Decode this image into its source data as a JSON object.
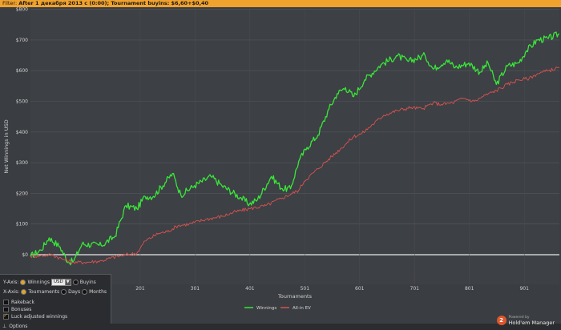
{
  "filter": {
    "label": "Filter:",
    "value": "After 1 декабря 2013 с (0:00); Tournament buyins: $6,60+$0,40"
  },
  "chart_data": {
    "type": "line",
    "ylabel": "Net Winnings in USD",
    "xlabel": "Tournaments",
    "xlim": [
      1,
      965
    ],
    "ylim": [
      0,
      800
    ],
    "yticks": [
      0,
      100,
      200,
      300,
      400,
      500,
      600,
      700,
      800
    ],
    "ytick_labels": [
      "$0",
      "$100",
      "$200",
      "$300",
      "$400",
      "$500",
      "$600",
      "$700",
      "$800"
    ],
    "xticks": [
      201,
      301,
      401,
      501,
      601,
      701,
      801,
      901
    ],
    "xtick_labels": [
      "201",
      "301",
      "401",
      "501",
      "601",
      "701",
      "801",
      "901"
    ],
    "grid": true,
    "legend_position": "bottom-center",
    "series": [
      {
        "name": "Winnings",
        "color": "#39e639",
        "points": [
          [
            1,
            -5
          ],
          [
            20,
            15
          ],
          [
            35,
            55
          ],
          [
            55,
            25
          ],
          [
            70,
            -25
          ],
          [
            80,
            -20
          ],
          [
            95,
            35
          ],
          [
            130,
            30
          ],
          [
            155,
            60
          ],
          [
            175,
            160
          ],
          [
            195,
            150
          ],
          [
            210,
            190
          ],
          [
            225,
            190
          ],
          [
            260,
            265
          ],
          [
            275,
            195
          ],
          [
            300,
            225
          ],
          [
            330,
            255
          ],
          [
            350,
            225
          ],
          [
            385,
            185
          ],
          [
            400,
            165
          ],
          [
            415,
            180
          ],
          [
            440,
            255
          ],
          [
            460,
            215
          ],
          [
            475,
            215
          ],
          [
            490,
            305
          ],
          [
            505,
            350
          ],
          [
            525,
            390
          ],
          [
            545,
            475
          ],
          [
            560,
            525
          ],
          [
            575,
            545
          ],
          [
            590,
            515
          ],
          [
            610,
            570
          ],
          [
            640,
            620
          ],
          [
            670,
            648
          ],
          [
            690,
            630
          ],
          [
            720,
            650
          ],
          [
            735,
            605
          ],
          [
            760,
            635
          ],
          [
            775,
            610
          ],
          [
            800,
            625
          ],
          [
            820,
            595
          ],
          [
            835,
            625
          ],
          [
            850,
            555
          ],
          [
            870,
            615
          ],
          [
            890,
            625
          ],
          [
            905,
            665
          ],
          [
            925,
            700
          ],
          [
            945,
            705
          ],
          [
            965,
            720
          ]
        ]
      },
      {
        "name": "All-in EV",
        "color": "#d9534f",
        "points": [
          [
            1,
            -5
          ],
          [
            20,
            -3
          ],
          [
            40,
            0
          ],
          [
            60,
            -15
          ],
          [
            80,
            -25
          ],
          [
            100,
            -25
          ],
          [
            130,
            -20
          ],
          [
            160,
            -5
          ],
          [
            175,
            0
          ],
          [
            195,
            5
          ],
          [
            210,
            45
          ],
          [
            235,
            70
          ],
          [
            250,
            75
          ],
          [
            270,
            95
          ],
          [
            290,
            100
          ],
          [
            320,
            115
          ],
          [
            350,
            125
          ],
          [
            375,
            140
          ],
          [
            400,
            150
          ],
          [
            430,
            160
          ],
          [
            460,
            185
          ],
          [
            490,
            210
          ],
          [
            500,
            240
          ],
          [
            525,
            280
          ],
          [
            550,
            320
          ],
          [
            575,
            360
          ],
          [
            590,
            385
          ],
          [
            605,
            395
          ],
          [
            625,
            425
          ],
          [
            645,
            455
          ],
          [
            670,
            470
          ],
          [
            695,
            480
          ],
          [
            715,
            475
          ],
          [
            735,
            495
          ],
          [
            750,
            490
          ],
          [
            770,
            495
          ],
          [
            790,
            510
          ],
          [
            810,
            500
          ],
          [
            830,
            520
          ],
          [
            850,
            535
          ],
          [
            870,
            555
          ],
          [
            890,
            570
          ],
          [
            910,
            575
          ],
          [
            925,
            590
          ],
          [
            945,
            600
          ],
          [
            965,
            610
          ]
        ]
      }
    ]
  },
  "options": {
    "yaxis_label": "Y-Axis:",
    "winnings": "Winnings",
    "currency": "USD",
    "buyins": "Buyins",
    "xaxis_label": "X-Axis:",
    "tournaments": "Tournaments",
    "days": "Days",
    "months": "Months",
    "rakeback": "Rakeback",
    "bonuses": "Bonuses",
    "luck": "Luck adjusted winnings",
    "toggle": "Options"
  },
  "brand": {
    "powered": "Powered by",
    "name": "Hold'em Manager",
    "badge": "2"
  }
}
